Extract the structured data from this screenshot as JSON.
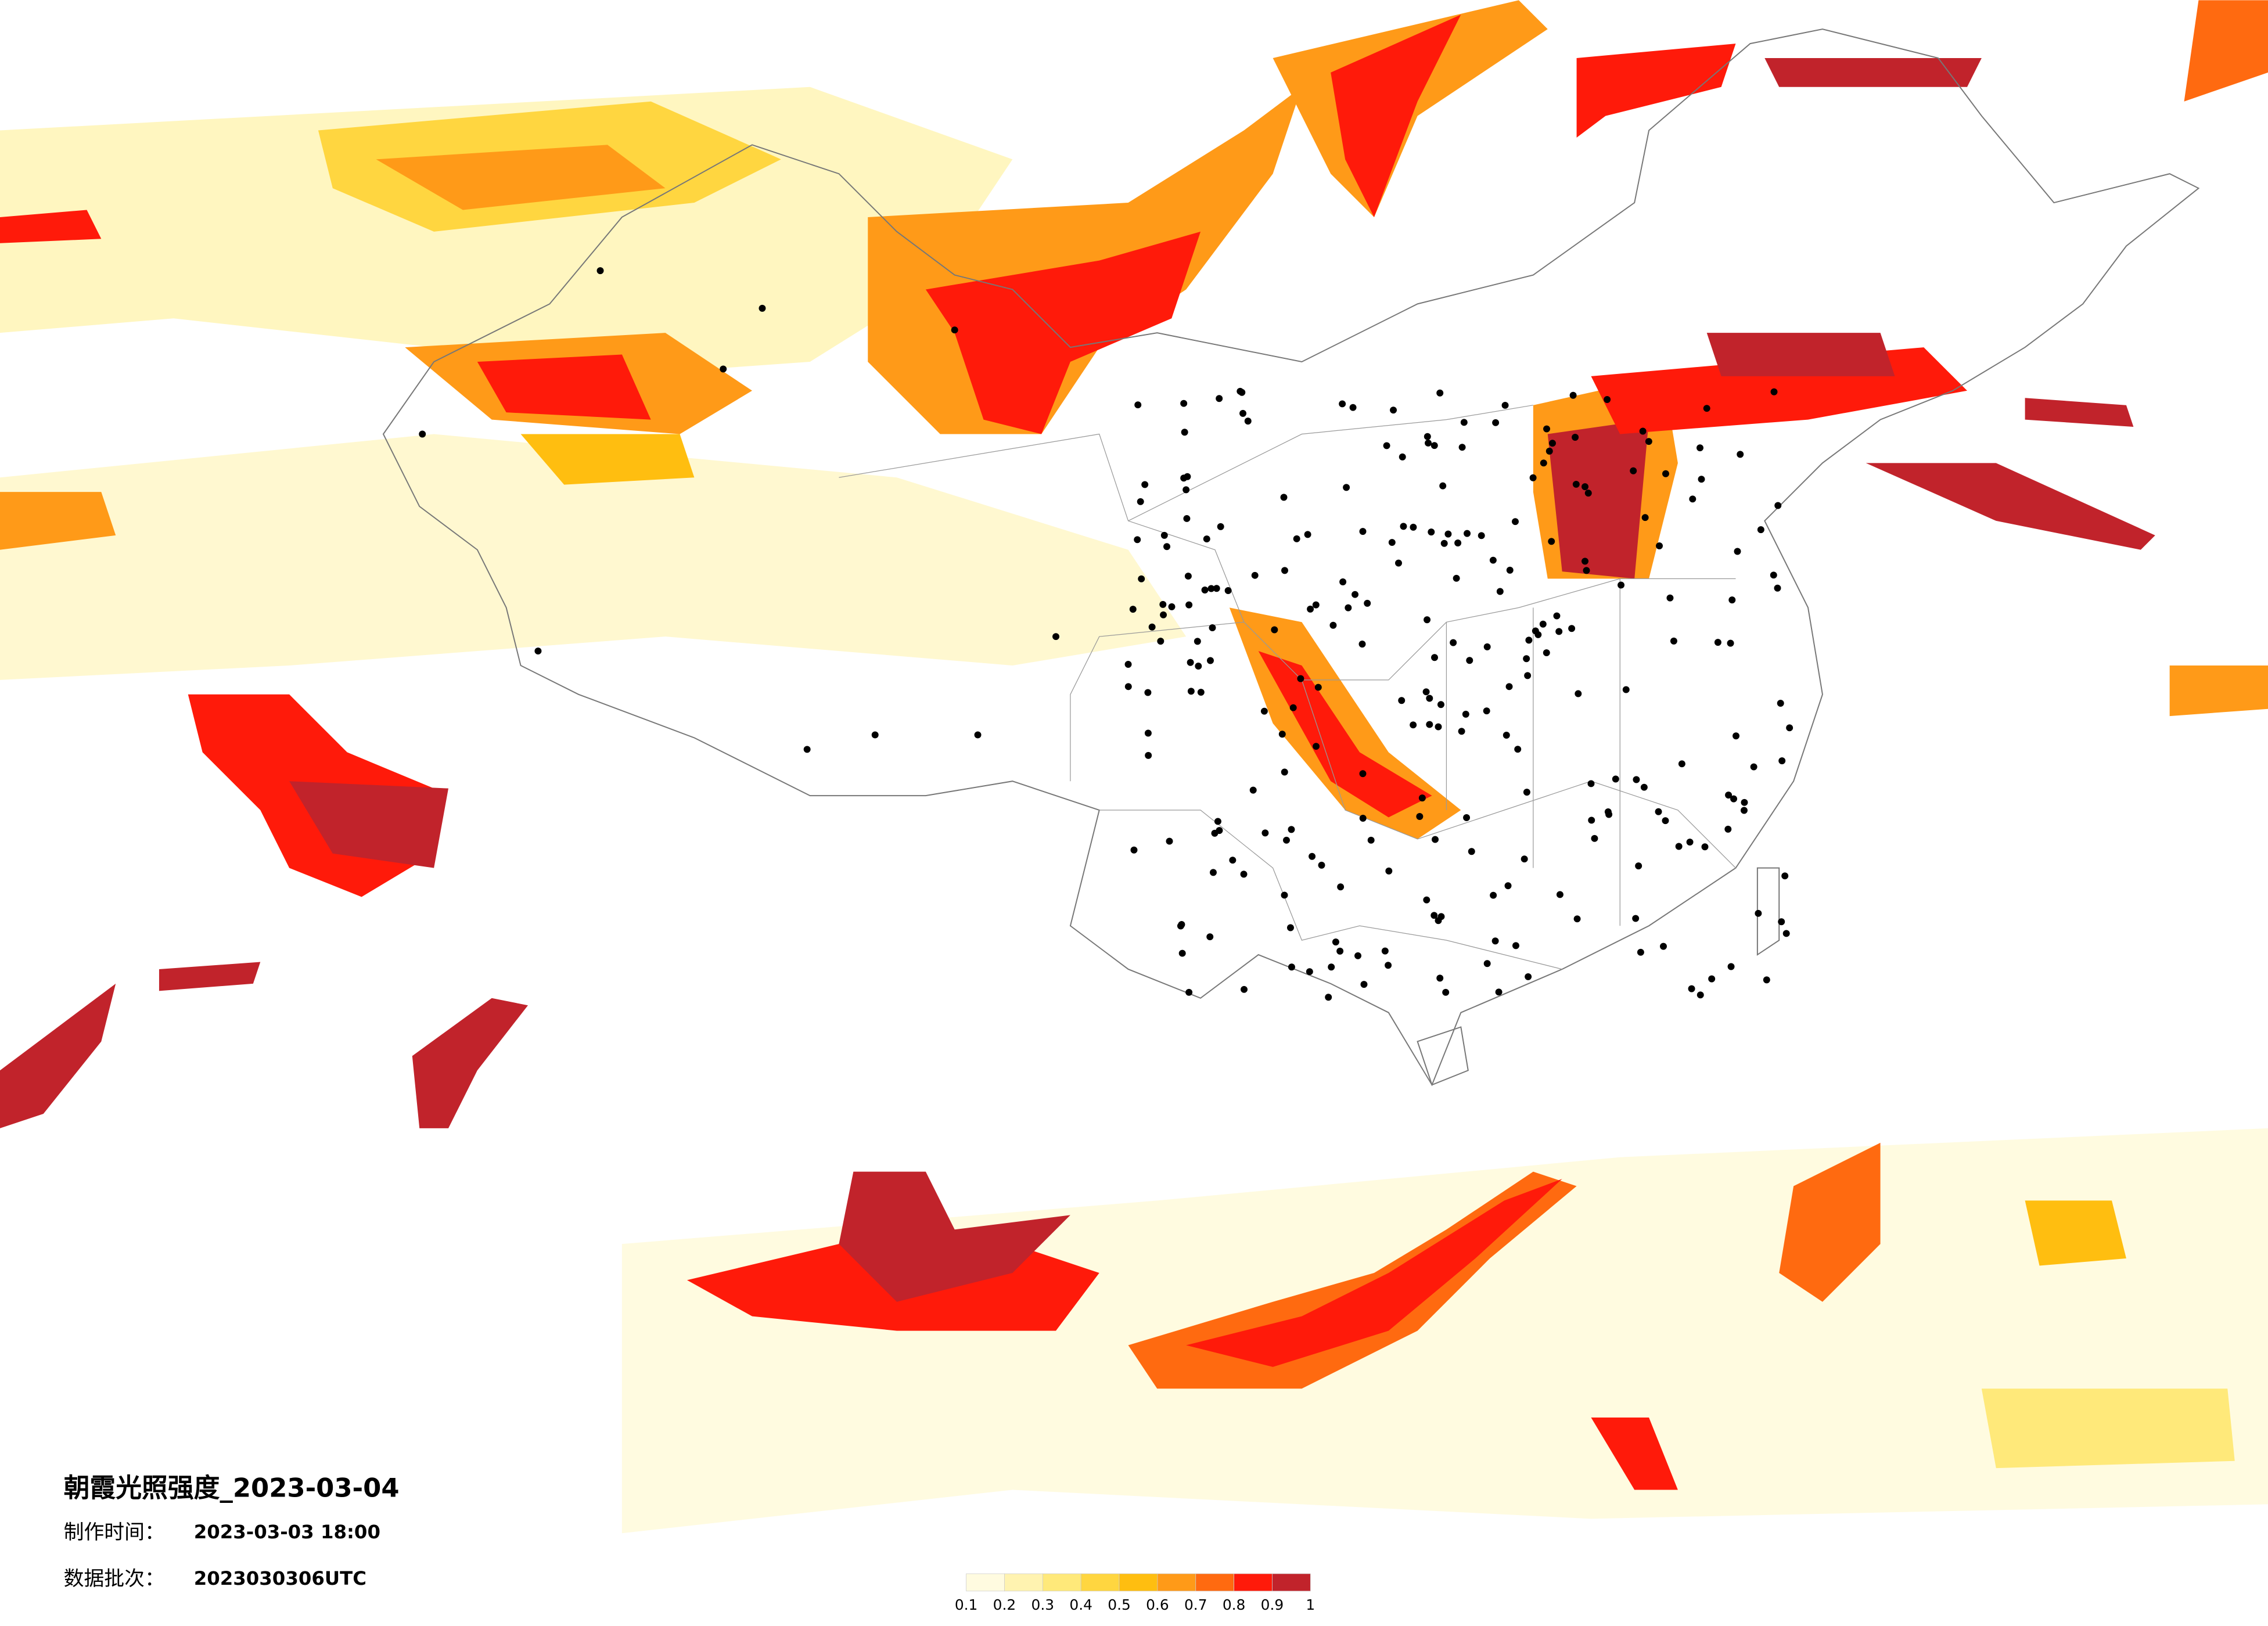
{
  "map": {
    "title": "朝霞光照强度_2023-03-04",
    "info": [
      {
        "label": "制作时间：",
        "value": "2023-03-03 18:00"
      },
      {
        "label": "数据批次：",
        "value": "2023030306UTC"
      }
    ],
    "legend": {
      "ticks": [
        0.1,
        0.2,
        0.3,
        0.4,
        0.5,
        0.6,
        0.7,
        0.8,
        0.9,
        1
      ],
      "colors": [
        "#fffbe0",
        "#fff3b0",
        "#ffe97a",
        "#ffd640",
        "#ffbe10",
        "#ff9a18",
        "#ff6a10",
        "#ff1a0a",
        "#c1232b"
      ]
    }
  }
}
